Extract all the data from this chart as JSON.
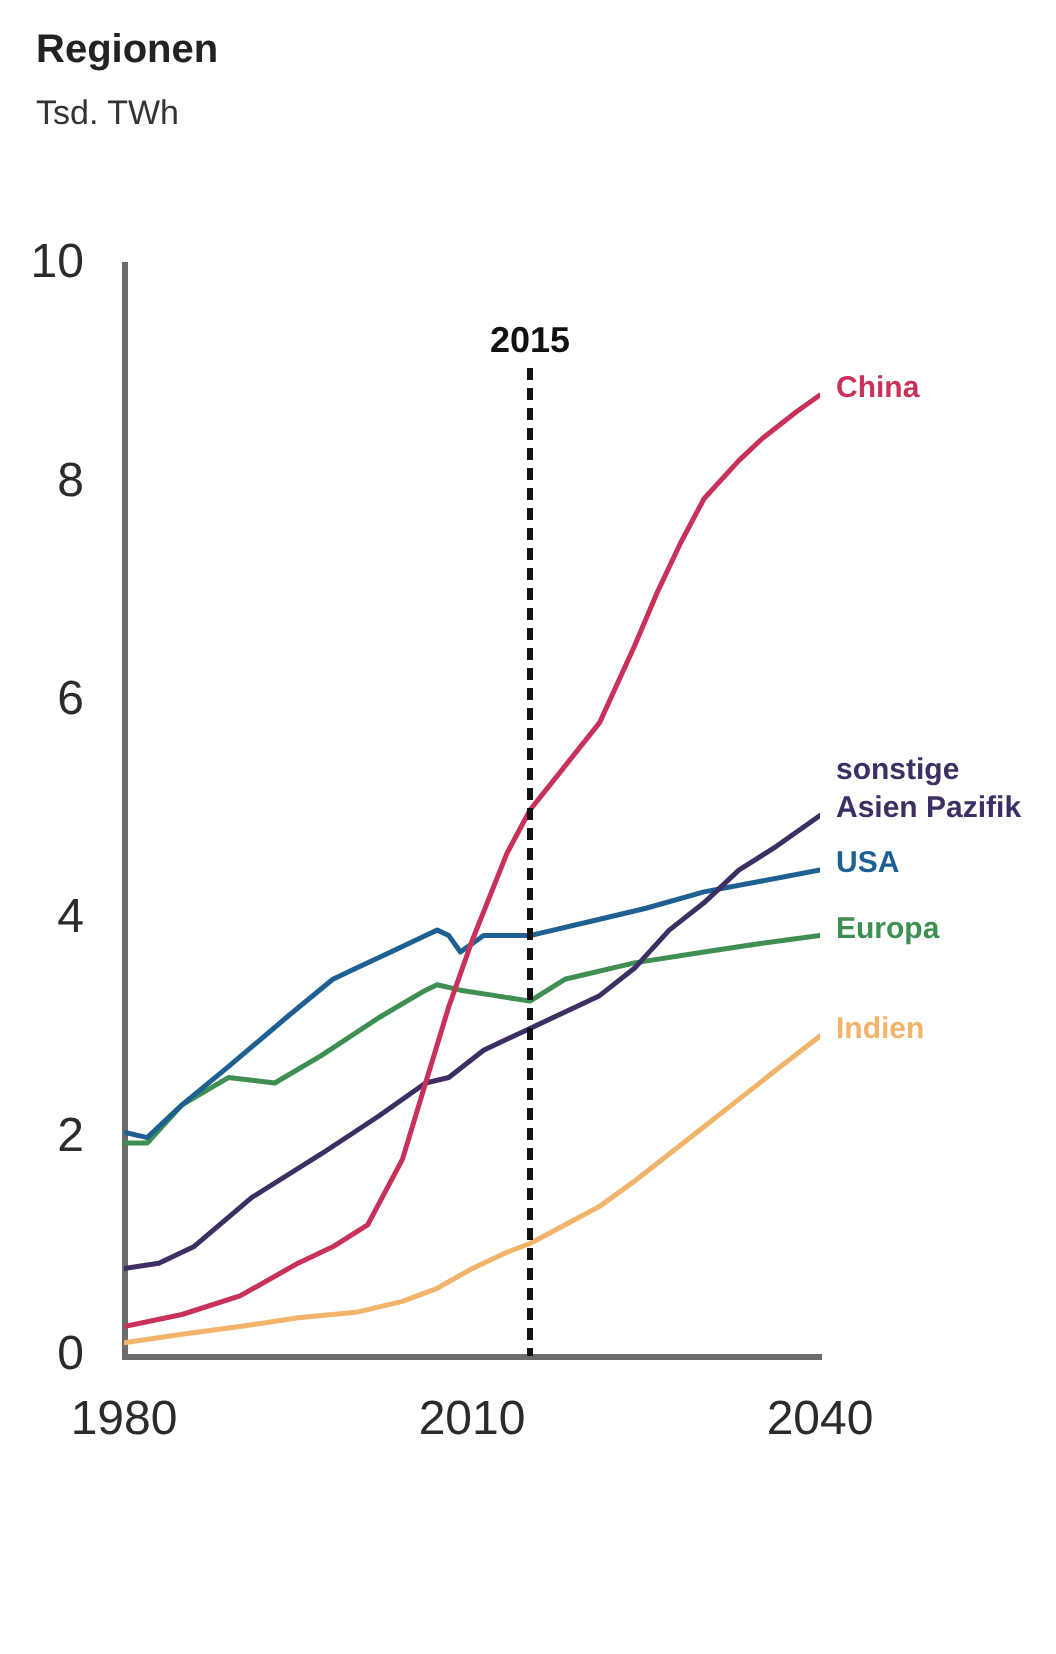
{
  "chart_data": {
    "type": "line",
    "title": "Regionen",
    "subtitle": "Tsd. TWh",
    "xlim": [
      1980,
      2040
    ],
    "xticks": [
      1980,
      2010,
      2040
    ],
    "ylim": [
      0,
      10
    ],
    "yticks": [
      0,
      2,
      4,
      6,
      8,
      10
    ],
    "grid": false,
    "legend": false,
    "marker": "none",
    "line_style": "solid",
    "ref_lines": [
      {
        "axis": "x",
        "value": 2015,
        "label": "2015",
        "color": "#111111",
        "line_style": "dashed"
      }
    ],
    "series": [
      {
        "name": "China",
        "color": "#c8325a",
        "x": [
          1980,
          1985,
          1990,
          1995,
          1998,
          2001,
          2004,
          2006,
          2008,
          2010,
          2013,
          2015,
          2018,
          2021,
          2024,
          2026,
          2028,
          2030,
          2033,
          2035,
          2038,
          2040
        ],
        "values": [
          0.27,
          0.38,
          0.55,
          0.85,
          1.0,
          1.2,
          1.8,
          2.5,
          3.2,
          3.8,
          4.6,
          5.0,
          5.4,
          5.8,
          6.5,
          7.0,
          7.45,
          7.85,
          8.2,
          8.4,
          8.65,
          8.8
        ]
      },
      {
        "name": "sonstige Asien Pazifik",
        "color": "#3d2f63",
        "x": [
          1980,
          1983,
          1986,
          1991,
          1997,
          2002,
          2006,
          2008,
          2011,
          2015,
          2021,
          2024,
          2027,
          2030,
          2033,
          2036,
          2040
        ],
        "values": [
          0.8,
          0.85,
          1.0,
          1.45,
          1.85,
          2.2,
          2.5,
          2.55,
          2.8,
          3.0,
          3.3,
          3.55,
          3.9,
          4.15,
          4.45,
          4.65,
          4.95
        ]
      },
      {
        "name": "USA",
        "color": "#1e6091",
        "x": [
          1980,
          1982,
          1985,
          1989,
          1994,
          1998,
          2000,
          2003,
          2006,
          2007,
          2008,
          2009,
          2011,
          2015,
          2021,
          2025,
          2030,
          2035,
          2040
        ],
        "values": [
          2.05,
          2.0,
          2.3,
          2.65,
          3.1,
          3.45,
          3.55,
          3.7,
          3.85,
          3.9,
          3.85,
          3.7,
          3.85,
          3.85,
          4.0,
          4.1,
          4.25,
          4.35,
          4.45
        ]
      },
      {
        "name": "Europa",
        "color": "#3f8f52",
        "x": [
          1980,
          1982,
          1985,
          1989,
          1993,
          1997,
          2002,
          2006,
          2007,
          2009,
          2012,
          2015,
          2018,
          2024,
          2030,
          2035,
          2040
        ],
        "values": [
          1.95,
          1.95,
          2.3,
          2.55,
          2.5,
          2.75,
          3.1,
          3.35,
          3.4,
          3.35,
          3.3,
          3.25,
          3.45,
          3.6,
          3.7,
          3.78,
          3.85
        ]
      },
      {
        "name": "Indien",
        "color": "#f2b36b",
        "x": [
          1980,
          1985,
          1990,
          1995,
          2000,
          2004,
          2007,
          2010,
          2013,
          2015,
          2018,
          2021,
          2024,
          2027,
          2030,
          2033,
          2036,
          2040
        ],
        "values": [
          0.12,
          0.2,
          0.27,
          0.35,
          0.4,
          0.5,
          0.62,
          0.8,
          0.95,
          1.03,
          1.2,
          1.37,
          1.6,
          1.85,
          2.1,
          2.35,
          2.6,
          2.93
        ]
      }
    ]
  }
}
